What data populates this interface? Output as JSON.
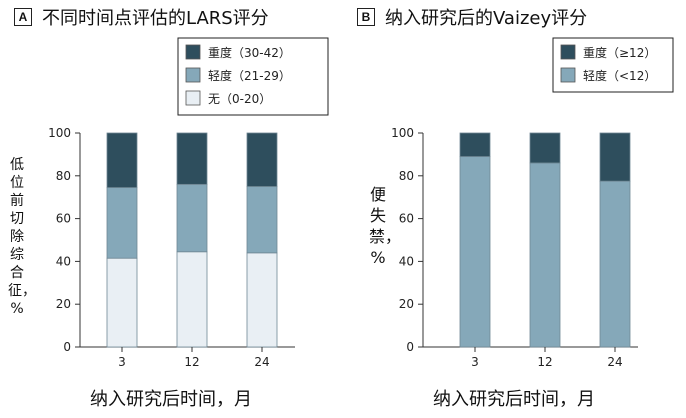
{
  "chart_data": [
    {
      "type": "bar",
      "stacked": true,
      "panel_label": "A",
      "title": "不同时间点评估的LARS评分",
      "xlabel": "纳入研究后时间，月",
      "ylabel": "低位前切除综合征，%",
      "categories": [
        "3",
        "12",
        "24"
      ],
      "ylim": [
        0,
        100
      ],
      "yticks": [
        "0",
        "20",
        "40",
        "60",
        "80",
        "100"
      ],
      "series": [
        {
          "name": "无（0-20）",
          "values": [
            41.5,
            44.5,
            44
          ],
          "color": "#e9eff4"
        },
        {
          "name": "轻度（21-29）",
          "values": [
            33,
            31.5,
            31
          ],
          "color": "#85a8b9"
        },
        {
          "name": "重度（30-42）",
          "values": [
            25.5,
            24,
            25
          ],
          "color": "#2e4e5d"
        }
      ],
      "legend_position": "top-right",
      "grid": false
    },
    {
      "type": "bar",
      "stacked": true,
      "panel_label": "B",
      "title": "纳入研究后的Vaizey评分",
      "xlabel": "纳入研究后时间，月",
      "ylabel": "便失禁，%",
      "categories": [
        "3",
        "12",
        "24"
      ],
      "ylim": [
        0,
        100
      ],
      "yticks": [
        "0",
        "20",
        "40",
        "60",
        "80",
        "100"
      ],
      "series": [
        {
          "name": "轻度（<12）",
          "values": [
            89,
            86,
            77.5
          ],
          "color": "#85a8b9"
        },
        {
          "name": "重度（≥12）",
          "values": [
            11,
            14,
            22.5
          ],
          "color": "#2e4e5d"
        }
      ],
      "legend_position": "top-right",
      "grid": false
    }
  ]
}
